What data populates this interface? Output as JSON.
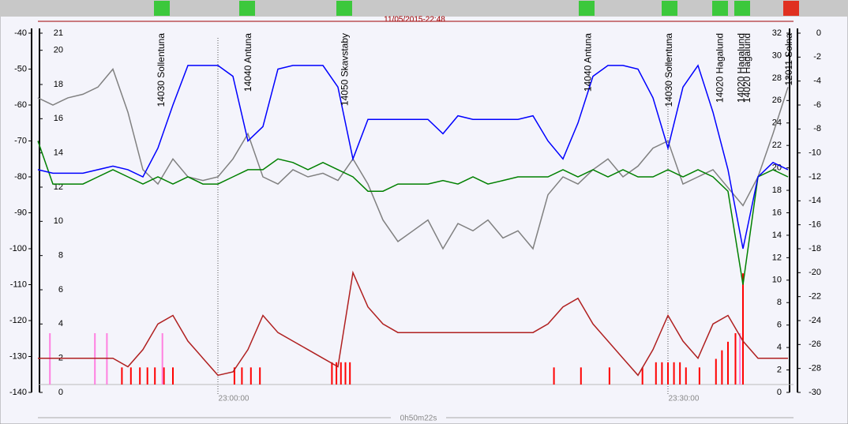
{
  "chart_data": {
    "type": "line",
    "top_timestamp": "11/05/2015-22:48",
    "duration": "0h50m22s",
    "xlim": [
      0,
      50.37
    ],
    "xticks": [
      {
        "value": 12,
        "label": "23:00:00"
      },
      {
        "value": 42,
        "label": "23:30:00"
      }
    ],
    "axes": [
      {
        "lim": [
          -140,
          -40
        ],
        "ticks": [
          -40,
          -50,
          -60,
          -70,
          -80,
          -90,
          -100,
          -110,
          -120,
          -130,
          -140
        ]
      },
      {
        "lim": [
          0,
          21
        ],
        "ticks": [
          21,
          20,
          18,
          16,
          14,
          12,
          10,
          8,
          6,
          4,
          2,
          0
        ]
      },
      {
        "lim": [
          0,
          32
        ],
        "ticks": [
          32,
          30,
          28,
          26,
          24,
          22,
          20,
          18,
          16,
          14,
          12,
          10,
          8,
          6,
          4,
          2,
          0
        ]
      },
      {
        "lim": [
          -30,
          0
        ],
        "ticks": [
          0,
          -2,
          -4,
          -6,
          -8,
          -10,
          -12,
          -14,
          -16,
          -18,
          -20,
          -22,
          -24,
          -26,
          -28,
          -30
        ]
      }
    ],
    "x": [
      0,
      1,
      2,
      3,
      4,
      5,
      6,
      7,
      8,
      9,
      10,
      11,
      12,
      13,
      14,
      15,
      16,
      17,
      18,
      19,
      20,
      21,
      22,
      23,
      24,
      25,
      26,
      27,
      28,
      29,
      30,
      31,
      32,
      33,
      34,
      35,
      36,
      37,
      38,
      39,
      40,
      41,
      42,
      43,
      44,
      45,
      46,
      47,
      48,
      49,
      50
    ],
    "series": [
      {
        "color": "#808080",
        "axis": 0,
        "values": [
          -58,
          -60,
          -58,
          -57,
          -55,
          -50,
          -62,
          -78,
          -82,
          -75,
          -80,
          -81,
          -80,
          -75,
          -68,
          -80,
          -82,
          -78,
          -80,
          -79,
          -81,
          -75,
          -82,
          -92,
          -98,
          -95,
          -92,
          -100,
          -93,
          -95,
          -92,
          -97,
          -95,
          -100,
          -85,
          -80,
          -82,
          -78,
          -75,
          -80,
          -77,
          -72,
          -70,
          -82,
          -80,
          -78,
          -83,
          -88,
          -80,
          -68,
          -55
        ]
      },
      {
        "color": "#008000",
        "axis": 0,
        "values": [
          -70,
          -82,
          -82,
          -82,
          -80,
          -78,
          -80,
          -82,
          -80,
          -82,
          -80,
          -82,
          -82,
          -80,
          -78,
          -78,
          -75,
          -76,
          -78,
          -76,
          -78,
          -80,
          -84,
          -84,
          -82,
          -82,
          -82,
          -81,
          -82,
          -80,
          -82,
          -81,
          -80,
          -80,
          -80,
          -78,
          -80,
          -78,
          -80,
          -78,
          -80,
          -80,
          -78,
          -80,
          -78,
          -80,
          -84,
          -110,
          -80,
          -78,
          -80
        ]
      },
      {
        "color": "#0000ff",
        "axis": 0,
        "values": [
          -78,
          -79,
          -79,
          -79,
          -78,
          -77,
          -78,
          -80,
          -72,
          -60,
          -49,
          -49,
          -49,
          -52,
          -70,
          -66,
          -50,
          -49,
          -49,
          -49,
          -55,
          -75,
          -64,
          -64,
          -64,
          -64,
          -64,
          -68,
          -63,
          -64,
          -64,
          -64,
          -64,
          -63,
          -70,
          -75,
          -65,
          -52,
          -49,
          -49,
          -50,
          -58,
          -72,
          -55,
          -49,
          -62,
          -78,
          -100,
          -80,
          -76,
          -78
        ]
      },
      {
        "color": "#b02020",
        "axis": 1,
        "values": [
          2,
          2,
          2,
          2,
          2,
          2,
          1.5,
          2.5,
          4,
          4.5,
          3,
          2,
          1,
          1.2,
          2.5,
          4.5,
          3.5,
          3,
          2.5,
          2,
          1.5,
          7,
          5,
          4,
          3.5,
          3.5,
          3.5,
          3.5,
          3.5,
          3.5,
          3.5,
          3.5,
          3.5,
          3.5,
          4,
          5,
          5.5,
          4,
          3,
          2,
          1,
          2.5,
          4.5,
          3,
          2,
          4,
          4.5,
          3,
          2,
          2,
          2
        ]
      }
    ],
    "event_series": [
      {
        "color": "#ff0000",
        "axis": 1,
        "x": [
          5.6,
          6.2,
          6.8,
          7.3,
          7.8,
          8.4,
          9.0,
          13.1,
          13.6,
          14.2,
          14.8,
          19.6,
          19.9,
          20.2,
          20.5,
          20.8,
          34.4,
          36.2,
          38.1,
          40.3,
          41.2,
          41.6,
          42.0,
          42.4,
          42.8,
          43.2,
          44.1,
          45.2,
          45.6,
          46.0,
          46.5,
          47.0
        ],
        "values": [
          1,
          1,
          1,
          1,
          1,
          1,
          1,
          1,
          1,
          1,
          1,
          1.3,
          1.3,
          1.3,
          1.3,
          1.3,
          1,
          1,
          1,
          1,
          1.3,
          1.3,
          1.3,
          1.3,
          1.3,
          1,
          1,
          1.5,
          2,
          2.5,
          3,
          6.5
        ]
      },
      {
        "color": "#ff80e0",
        "axis": 1,
        "values": [
          3,
          3,
          3,
          3,
          3
        ],
        "x": [
          0.8,
          3.8,
          4.6,
          8.3,
          46.8
        ]
      }
    ],
    "annotations": [
      {
        "x": 8.26,
        "text": "14030 Sollentuna"
      },
      {
        "x": 14.05,
        "text": "14040 Antuna"
      },
      {
        "x": 20.5,
        "text": "14050 Skavstaby"
      },
      {
        "x": 36.7,
        "text": "14040 Antuna"
      },
      {
        "x": 42.1,
        "text": "14030 Sollentuna"
      },
      {
        "x": 45.5,
        "text": "14020 Hagalund"
      },
      {
        "x": 46.9,
        "text": "14020 Hagalund"
      },
      {
        "x": 47.3,
        "text": "14020 Hagalund"
      },
      {
        "x": 50.1,
        "text": "12011 Solna"
      }
    ]
  }
}
